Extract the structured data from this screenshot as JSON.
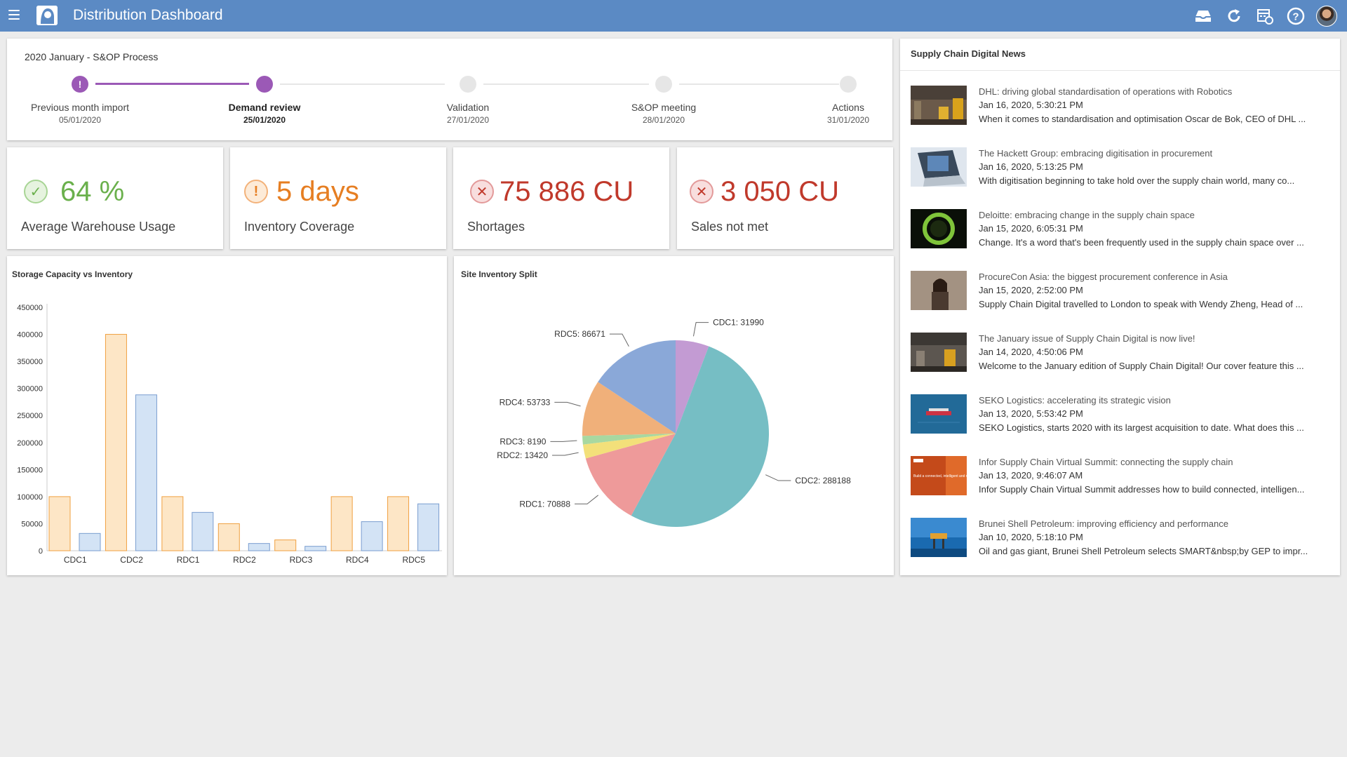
{
  "app": {
    "title": "Distribution Dashboard"
  },
  "process": {
    "title": "2020 January - S&OP Process",
    "steps": [
      {
        "label": "Previous month import",
        "date": "05/01/2020",
        "state": "warning"
      },
      {
        "label": "Demand review",
        "date": "25/01/2020",
        "state": "active"
      },
      {
        "label": "Validation",
        "date": "27/01/2020",
        "state": "pending"
      },
      {
        "label": "S&OP meeting",
        "date": "28/01/2020",
        "state": "pending"
      },
      {
        "label": "Actions",
        "date": "31/01/2020",
        "state": "pending"
      }
    ]
  },
  "kpis": [
    {
      "value": "64 %",
      "label": "Average Warehouse Usage",
      "status": "ok",
      "color": "#6ab04c"
    },
    {
      "value": "5 days",
      "label": "Inventory Coverage",
      "status": "warning",
      "color": "#e67e22"
    },
    {
      "value": "75 886 CU",
      "label": "Shortages",
      "status": "error",
      "color": "#c0392b"
    },
    {
      "value": "3 050 CU",
      "label": "Sales not met",
      "status": "error",
      "color": "#c0392b"
    }
  ],
  "bar_chart_title": "Storage Capacity vs Inventory",
  "pie_chart_title": "Site Inventory Split",
  "chart_data": [
    {
      "type": "bar",
      "title": "Storage Capacity vs Inventory",
      "categories": [
        "CDC1",
        "CDC2",
        "RDC1",
        "RDC2",
        "RDC3",
        "RDC4",
        "RDC5"
      ],
      "series": [
        {
          "values": [
            100000,
            400000,
            100000,
            50000,
            20000,
            100000,
            100000
          ],
          "fill": "#fde6c6",
          "stroke": "#f0a040"
        },
        {
          "values": [
            31990,
            288188,
            70888,
            13420,
            8190,
            53733,
            86671
          ],
          "fill": "#d3e3f5",
          "stroke": "#7a9ed0"
        }
      ],
      "yticks": [
        "450000",
        "400000",
        "350000",
        "300000",
        "250000",
        "200000",
        "150000",
        "100000",
        "50000",
        "0"
      ],
      "ylim": [
        0,
        450000
      ]
    },
    {
      "type": "pie",
      "title": "Site Inventory Split",
      "slices": [
        {
          "name": "CDC1",
          "value": 31990,
          "label": "CDC1: 31990",
          "color": "#c39bd3"
        },
        {
          "name": "CDC2",
          "value": 288188,
          "label": "CDC2: 288188",
          "color": "#76bec4"
        },
        {
          "name": "RDC1",
          "value": 70888,
          "label": "RDC1: 70888",
          "color": "#ee9a9a"
        },
        {
          "name": "RDC2",
          "value": 13420,
          "label": "RDC2: 13420",
          "color": "#f3e07a"
        },
        {
          "name": "RDC3",
          "value": 8190,
          "label": "RDC3: 8190",
          "color": "#a8d8a0"
        },
        {
          "name": "RDC4",
          "value": 53733,
          "label": "RDC4: 53733",
          "color": "#f0b07a"
        },
        {
          "name": "RDC5",
          "value": 86671,
          "label": "RDC5: 86671",
          "color": "#8aa8d8"
        }
      ]
    }
  ],
  "news": {
    "title": "Supply Chain Digital News",
    "items": [
      {
        "headline": "DHL: driving global standardisation of operations with Robotics",
        "date": "Jan 16, 2020, 5:30:21 PM",
        "desc": "When it comes to standardisation and optimisation Oscar de Bok, CEO of DHL ...",
        "thumb": "warehouse-robot"
      },
      {
        "headline": "The Hackett Group: embracing digitisation in procurement",
        "date": "Jan 16, 2020, 5:13:25 PM",
        "desc": "With digitisation beginning to take hold over the supply chain world, many co...",
        "thumb": "laptop"
      },
      {
        "headline": "Deloitte: embracing change in the supply chain space",
        "date": "Jan 15, 2020, 6:05:31 PM",
        "desc": "Change. It's a word that's been frequently used in the supply chain space over ...",
        "thumb": "green-ring"
      },
      {
        "headline": "ProcureCon Asia: the biggest procurement conference in Asia",
        "date": "Jan 15, 2020, 2:52:00 PM",
        "desc": "Supply Chain Digital travelled to London to speak with Wendy Zheng, Head of ...",
        "thumb": "portrait"
      },
      {
        "headline": "The January issue of Supply Chain Digital is now live!",
        "date": "Jan 14, 2020, 4:50:06 PM",
        "desc": "Welcome to the January edition of Supply Chain Digital! Our cover feature this ...",
        "thumb": "warehouse"
      },
      {
        "headline": "SEKO Logistics: accelerating its strategic vision",
        "date": "Jan 13, 2020, 5:53:42 PM",
        "desc": "SEKO Logistics, starts 2020 with its largest acquisition to date. What does this ...",
        "thumb": "ship"
      },
      {
        "headline": "Infor Supply Chain Virtual Summit: connecting the supply chain",
        "date": "Jan 13, 2020, 9:46:07 AM",
        "desc": "Infor Supply Chain Virtual Summit addresses how to build connected, intelligen...",
        "thumb": "infor-banner",
        "thumb_text": "Build a connected, intelligent and responsive supply chain"
      },
      {
        "headline": "Brunei Shell Petroleum: improving efficiency and performance",
        "date": "Jan 10, 2020, 5:18:10 PM",
        "desc": "Oil and gas giant, Brunei Shell Petroleum selects SMART&nbsp;by GEP to impr...",
        "thumb": "oil-platform"
      }
    ]
  }
}
